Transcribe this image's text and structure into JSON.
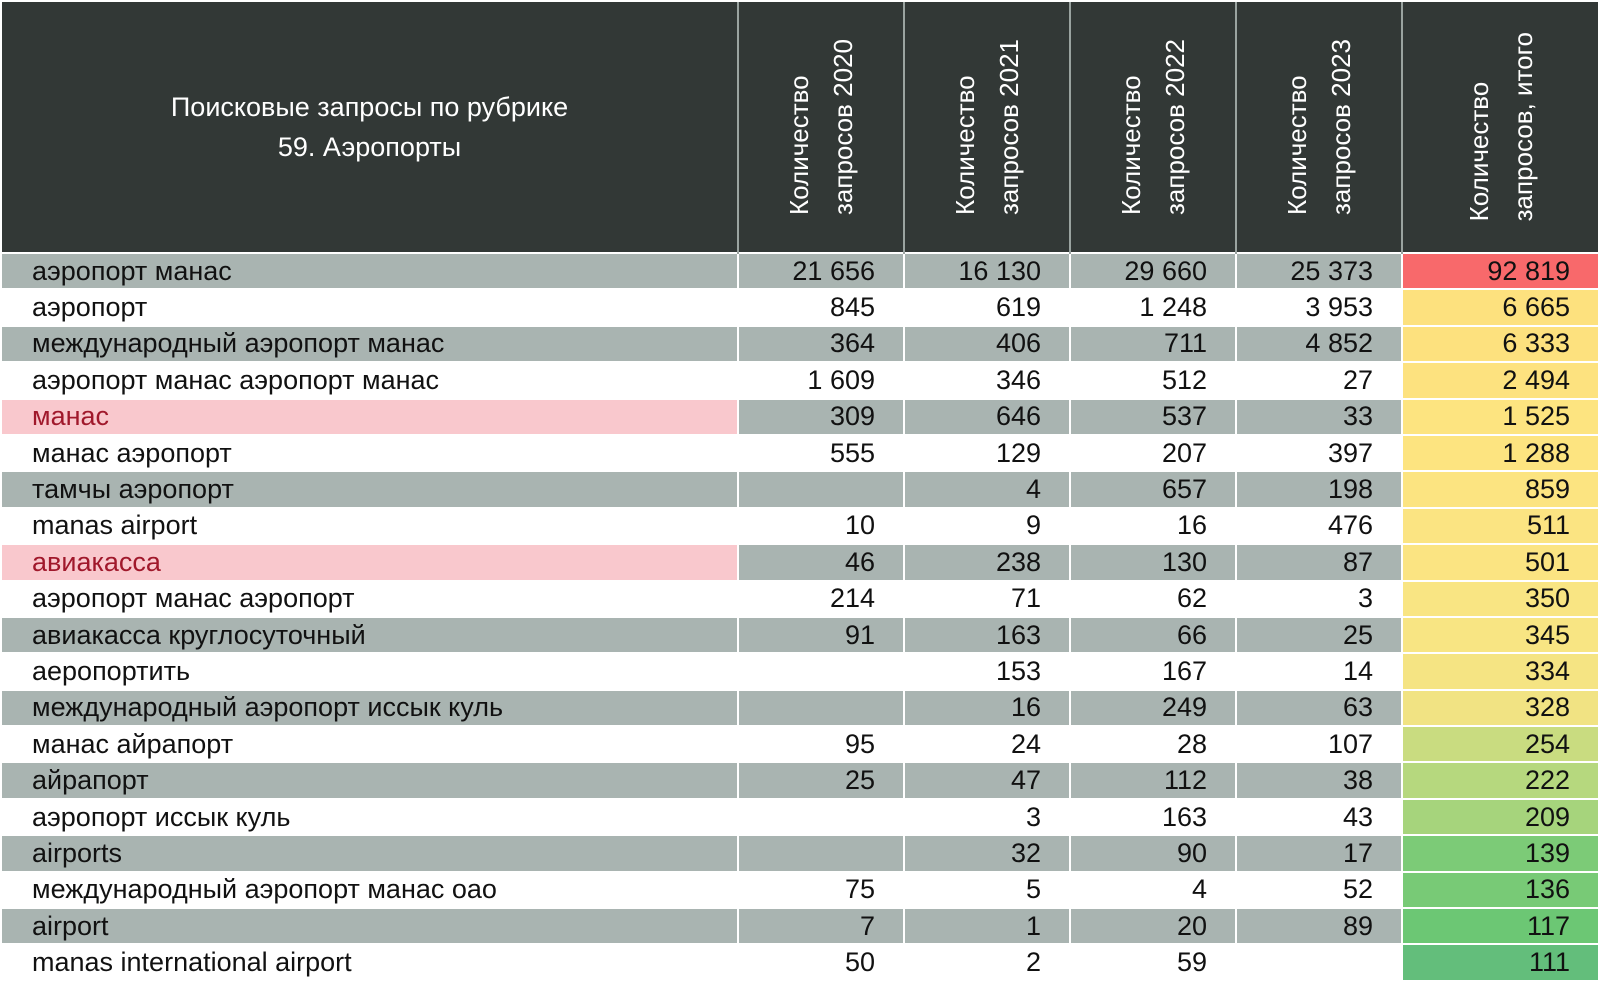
{
  "header": {
    "title_line1": "Поисковые запросы по рубрике",
    "title_line2": "59. Аэропорты",
    "columns": [
      {
        "line1": "Количество",
        "line2": "запросов 2020"
      },
      {
        "line1": "Количество",
        "line2": "запросов 2021"
      },
      {
        "line1": "Количество",
        "line2": "запросов 2022"
      },
      {
        "line1": "Количество",
        "line2": "запросов 2023"
      },
      {
        "line1": "Количество",
        "line2": "запросов, итого"
      }
    ]
  },
  "colors": {
    "header_bg": "#323836",
    "band_bg": "#a9b4b1",
    "highlight_bg": "#f9c8cd",
    "highlight_text": "#a0182b"
  },
  "rows": [
    {
      "query": "аэропорт манас",
      "y2020": "21 656",
      "y2021": "16 130",
      "y2022": "29 660",
      "y2023": "25 373",
      "total": "92 819",
      "total_color": "#f8696b",
      "highlight": false
    },
    {
      "query": "аэропорт",
      "y2020": "845",
      "y2021": "619",
      "y2022": "1 248",
      "y2023": "3 953",
      "total": "6 665",
      "total_color": "#fde17e",
      "highlight": false
    },
    {
      "query": "международный аэропорт манас",
      "y2020": "364",
      "y2021": "406",
      "y2022": "711",
      "y2023": "4 852",
      "total": "6 333",
      "total_color": "#fde17e",
      "highlight": false
    },
    {
      "query": "аэропорт манас аэропорт манас",
      "y2020": "1 609",
      "y2021": "346",
      "y2022": "512",
      "y2023": "27",
      "total": "2 494",
      "total_color": "#fde27f",
      "highlight": false
    },
    {
      "query": "манас",
      "y2020": "309",
      "y2021": "646",
      "y2022": "537",
      "y2023": "33",
      "total": "1 525",
      "total_color": "#fde480",
      "highlight": true
    },
    {
      "query": "манас аэропорт",
      "y2020": "555",
      "y2021": "129",
      "y2022": "207",
      "y2023": "397",
      "total": "1 288",
      "total_color": "#fde480",
      "highlight": false
    },
    {
      "query": "тамчы аэропорт",
      "y2020": "",
      "y2021": "4",
      "y2022": "657",
      "y2023": "198",
      "total": "859",
      "total_color": "#fce481",
      "highlight": false
    },
    {
      "query": "manas airport",
      "y2020": "10",
      "y2021": "9",
      "y2022": "16",
      "y2023": "476",
      "total": "511",
      "total_color": "#fbe482",
      "highlight": false
    },
    {
      "query": "авиакасса",
      "y2020": "46",
      "y2021": "238",
      "y2022": "130",
      "y2023": "87",
      "total": "501",
      "total_color": "#fbe482",
      "highlight": true
    },
    {
      "query": "аэропорт манас аэропорт",
      "y2020": "214",
      "y2021": "71",
      "y2022": "62",
      "y2023": "3",
      "total": "350",
      "total_color": "#f9e583",
      "highlight": false
    },
    {
      "query": "авиакасса круглосуточный",
      "y2020": "91",
      "y2021": "163",
      "y2022": "66",
      "y2023": "25",
      "total": "345",
      "total_color": "#f8e583",
      "highlight": false
    },
    {
      "query": "аеропортить",
      "y2020": "",
      "y2021": "153",
      "y2022": "167",
      "y2023": "14",
      "total": "334",
      "total_color": "#f5e483",
      "highlight": false
    },
    {
      "query": "международный аэропорт иссык куль",
      "y2020": "",
      "y2021": "16",
      "y2022": "249",
      "y2023": "63",
      "total": "328",
      "total_color": "#f1e383",
      "highlight": false
    },
    {
      "query": "манас айрапорт",
      "y2020": "95",
      "y2021": "24",
      "y2022": "28",
      "y2023": "107",
      "total": "254",
      "total_color": "#c9dc80",
      "highlight": false
    },
    {
      "query": "айрапорт",
      "y2020": "25",
      "y2021": "47",
      "y2022": "112",
      "y2023": "38",
      "total": "222",
      "total_color": "#b6d87e",
      "highlight": false
    },
    {
      "query": "аэропорт иссык куль",
      "y2020": "",
      "y2021": "3",
      "y2022": "163",
      "y2023": "43",
      "total": "209",
      "total_color": "#a6d47c",
      "highlight": false
    },
    {
      "query": "airports",
      "y2020": "",
      "y2021": "32",
      "y2022": "90",
      "y2023": "17",
      "total": "139",
      "total_color": "#7ccb77",
      "highlight": false
    },
    {
      "query": "международный аэропорт манас оао",
      "y2020": "75",
      "y2021": "5",
      "y2022": "4",
      "y2023": "52",
      "total": "136",
      "total_color": "#78ca76",
      "highlight": false
    },
    {
      "query": "airport",
      "y2020": "7",
      "y2021": "1",
      "y2022": "20",
      "y2023": "89",
      "total": "117",
      "total_color": "#6cc774",
      "highlight": false
    },
    {
      "query": "manas international airport",
      "y2020": "50",
      "y2021": "2",
      "y2022": "59",
      "y2023": "",
      "total": "111",
      "total_color": "#63be7b",
      "highlight": false
    }
  ]
}
